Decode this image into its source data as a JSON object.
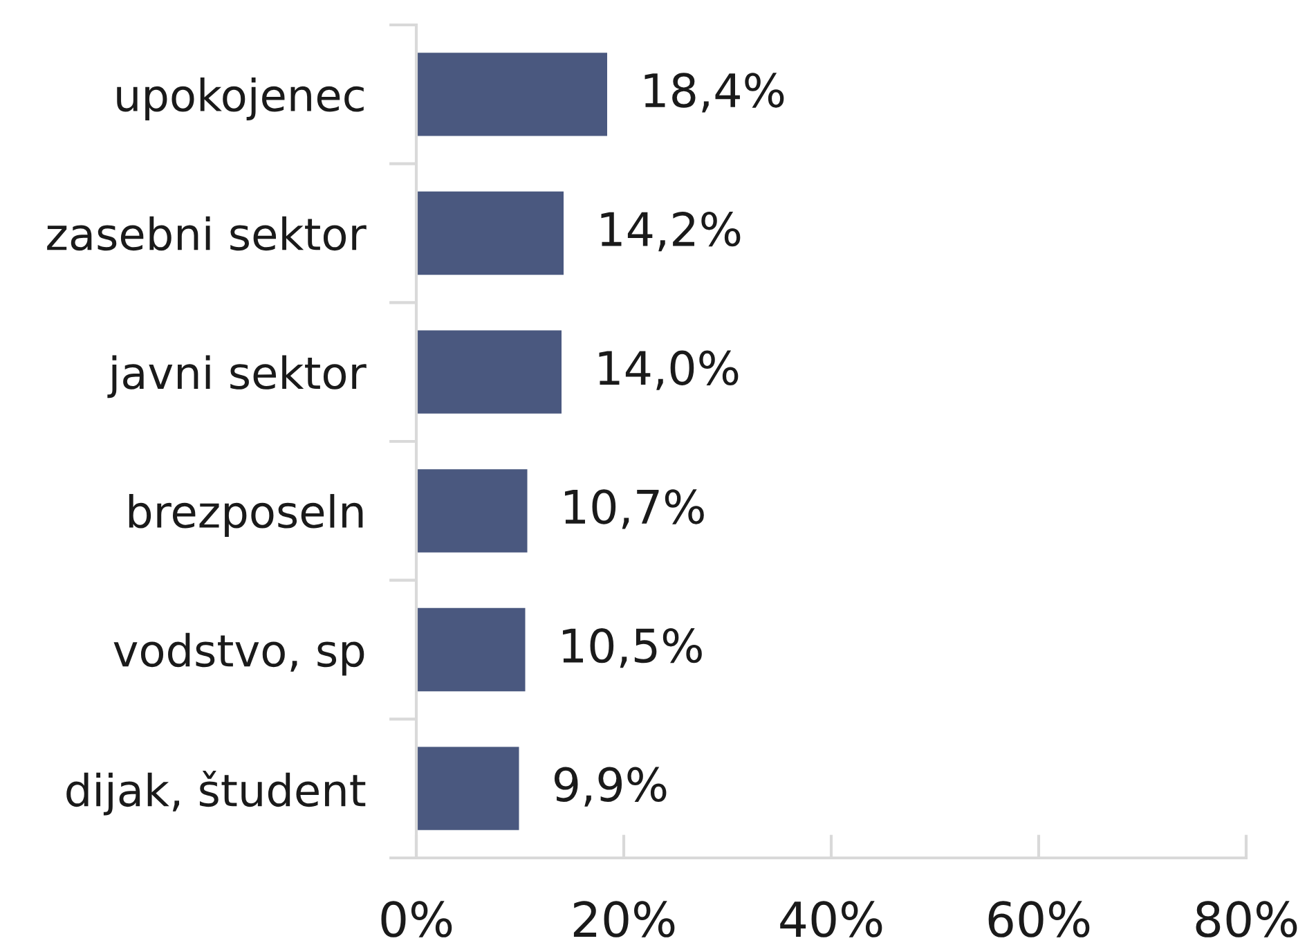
{
  "chart_data": {
    "type": "bar",
    "orientation": "horizontal",
    "categories": [
      "upokojenec",
      "zasebni sektor",
      "javni sektor",
      "brezposeln",
      "vodstvo, sp",
      "dijak, študent"
    ],
    "values": [
      18.4,
      14.2,
      14.0,
      10.7,
      10.5,
      9.9
    ],
    "color": "#4a587f",
    "value_labels": [
      "18,4%",
      "14,2%",
      "14,0%",
      "10,7%",
      "10,5%",
      "9,9%"
    ],
    "xlim": [
      0,
      80
    ],
    "xticks": [
      {
        "value": 0,
        "label": "0%"
      },
      {
        "value": 20,
        "label": "20%"
      },
      {
        "value": 40,
        "label": "40%"
      },
      {
        "value": 60,
        "label": "60%"
      },
      {
        "value": 80,
        "label": "80%"
      }
    ]
  }
}
